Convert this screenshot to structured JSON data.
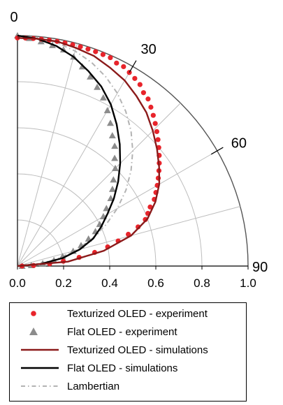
{
  "chart_data": {
    "type": "polar",
    "angle_unit": "degrees",
    "angle_ticks": [
      {
        "angle": 0,
        "label": "0"
      },
      {
        "angle": 30,
        "label": "30"
      },
      {
        "angle": 60,
        "label": "60"
      },
      {
        "angle": 90,
        "label": "90"
      }
    ],
    "radial_ticks": [
      "0.0",
      "0.2",
      "0.4",
      "0.6",
      "0.8",
      "1.0"
    ],
    "radial_max": 1.0,
    "grid": true,
    "series": [
      {
        "name": "Texturized OLED - experiment",
        "kind": "markers-circle",
        "color": "#e8242b",
        "angles": [
          0,
          2,
          4,
          6,
          8,
          10,
          12,
          14,
          16,
          18,
          20,
          22,
          24,
          26,
          28,
          30,
          32,
          34,
          36,
          38,
          40,
          42,
          44,
          46,
          48,
          50,
          52,
          54,
          56,
          58,
          60,
          62,
          64,
          66,
          68,
          70,
          72,
          74,
          76,
          78,
          80,
          82,
          84,
          86,
          88,
          90
        ],
        "values": [
          0.99,
          0.99,
          0.99,
          0.99,
          0.99,
          0.99,
          0.99,
          0.99,
          0.99,
          0.99,
          0.99,
          0.99,
          0.99,
          0.98,
          0.98,
          0.97,
          0.96,
          0.95,
          0.93,
          0.92,
          0.9,
          0.88,
          0.86,
          0.84,
          0.82,
          0.8,
          0.78,
          0.76,
          0.74,
          0.72,
          0.7,
          0.68,
          0.66,
          0.63,
          0.61,
          0.59,
          0.55,
          0.5,
          0.45,
          0.4,
          0.34,
          0.27,
          0.2,
          0.14,
          0.07,
          0.02
        ]
      },
      {
        "name": "Flat OLED - experiment",
        "kind": "markers-triangle",
        "color": "#8c8c8c",
        "angles": [
          0,
          3,
          6,
          9,
          12,
          15,
          18,
          21,
          24,
          27,
          30,
          33,
          36,
          39,
          42,
          45,
          48,
          51,
          54,
          57,
          60,
          63,
          66,
          69,
          72,
          75,
          78,
          81,
          84,
          87,
          90
        ],
        "values": [
          1.0,
          0.99,
          0.98,
          0.97,
          0.96,
          0.94,
          0.91,
          0.88,
          0.85,
          0.82,
          0.78,
          0.74,
          0.7,
          0.67,
          0.63,
          0.6,
          0.56,
          0.53,
          0.5,
          0.46,
          0.43,
          0.4,
          0.37,
          0.33,
          0.29,
          0.25,
          0.2,
          0.16,
          0.11,
          0.06,
          0.02
        ]
      },
      {
        "name": "Texturized OLED - simulations",
        "kind": "line",
        "color": "#8b1a1a",
        "angles": [
          0,
          5,
          10,
          15,
          20,
          25,
          30,
          35,
          40,
          45,
          50,
          55,
          60,
          65,
          70,
          75,
          80,
          85,
          90
        ],
        "values": [
          0.99,
          0.99,
          0.99,
          0.98,
          0.97,
          0.95,
          0.93,
          0.9,
          0.87,
          0.83,
          0.79,
          0.75,
          0.71,
          0.66,
          0.6,
          0.51,
          0.38,
          0.22,
          0.0
        ]
      },
      {
        "name": "Flat OLED - simulations",
        "kind": "line",
        "color": "#000000",
        "angles": [
          0,
          5,
          10,
          15,
          20,
          25,
          30,
          35,
          40,
          45,
          50,
          55,
          60,
          65,
          70,
          75,
          80,
          85,
          90
        ],
        "values": [
          1.0,
          0.99,
          0.97,
          0.94,
          0.9,
          0.86,
          0.81,
          0.75,
          0.69,
          0.63,
          0.57,
          0.51,
          0.45,
          0.4,
          0.35,
          0.28,
          0.2,
          0.1,
          0.0
        ]
      },
      {
        "name": "Lambertian",
        "kind": "dashdot-line",
        "color": "#b3b3b3",
        "angles": [
          0,
          5,
          10,
          15,
          20,
          25,
          30,
          35,
          40,
          45,
          50,
          55,
          60,
          65,
          70,
          75,
          80,
          85,
          90
        ],
        "values": [
          1.0,
          0.996,
          0.985,
          0.966,
          0.94,
          0.906,
          0.866,
          0.819,
          0.766,
          0.707,
          0.643,
          0.574,
          0.5,
          0.423,
          0.342,
          0.259,
          0.174,
          0.087,
          0.0
        ]
      }
    ]
  },
  "legend": {
    "entries": [
      {
        "label": "Texturized OLED - experiment",
        "kind": "markers-circle",
        "color": "#e8242b"
      },
      {
        "label": "Flat OLED - experiment",
        "kind": "markers-triangle",
        "color": "#8c8c8c"
      },
      {
        "label": "Texturized OLED - simulations",
        "kind": "line",
        "color": "#8b1a1a"
      },
      {
        "label": "Flat OLED - simulations",
        "kind": "line",
        "color": "#000000"
      },
      {
        "label": "Lambertian",
        "kind": "dashdot-line",
        "color": "#b3b3b3"
      }
    ]
  }
}
